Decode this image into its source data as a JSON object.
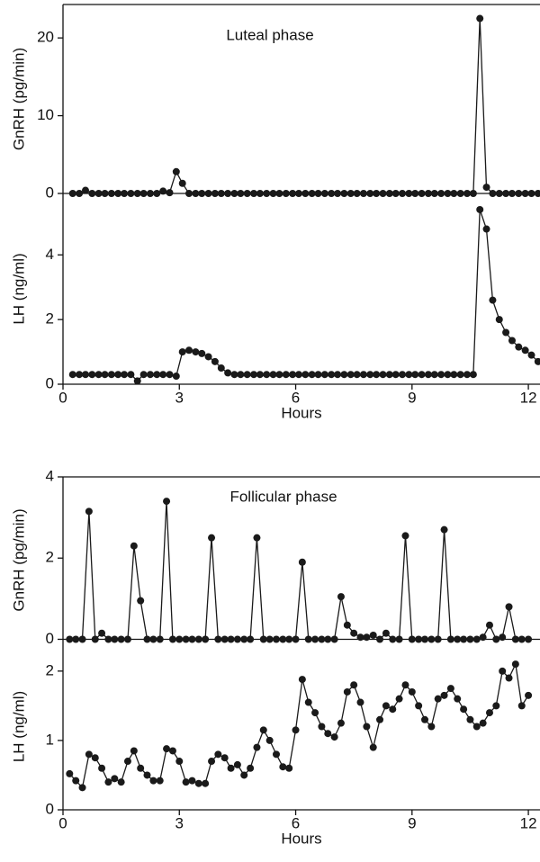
{
  "chart_data": [
    {
      "type": "line",
      "ylabel": "GnRH (pg/min)",
      "annotation": "Luteal phase",
      "color": "#1a1a1a",
      "xlim": [
        0,
        12.3
      ],
      "ylim": [
        0,
        24.3
      ],
      "yticks": [
        0,
        10,
        20
      ],
      "x": [
        0.25,
        0.42,
        0.58,
        0.75,
        0.92,
        1.08,
        1.25,
        1.42,
        1.58,
        1.75,
        1.92,
        2.08,
        2.25,
        2.42,
        2.58,
        2.75,
        2.92,
        3.08,
        3.25,
        3.42,
        3.58,
        3.75,
        3.92,
        4.08,
        4.25,
        4.42,
        4.58,
        4.75,
        4.92,
        5.08,
        5.25,
        5.42,
        5.58,
        5.75,
        5.92,
        6.08,
        6.25,
        6.42,
        6.58,
        6.75,
        6.92,
        7.08,
        7.25,
        7.42,
        7.58,
        7.75,
        7.92,
        8.08,
        8.25,
        8.42,
        8.58,
        8.75,
        8.92,
        9.08,
        9.25,
        9.42,
        9.58,
        9.75,
        9.92,
        10.08,
        10.25,
        10.42,
        10.58,
        10.75,
        10.92,
        11.08,
        11.25,
        11.42,
        11.58,
        11.75,
        11.92,
        12.08,
        12.25
      ],
      "values": [
        0,
        0,
        0.4,
        0,
        0,
        0,
        0,
        0,
        0,
        0,
        0,
        0,
        0,
        0,
        0.3,
        0.1,
        2.8,
        1.3,
        0,
        0,
        0,
        0,
        0,
        0,
        0,
        0,
        0,
        0,
        0,
        0,
        0,
        0,
        0,
        0,
        0,
        0,
        0,
        0,
        0,
        0,
        0,
        0,
        0,
        0,
        0,
        0,
        0,
        0,
        0,
        0,
        0,
        0,
        0,
        0,
        0,
        0,
        0,
        0,
        0,
        0,
        0,
        0,
        0,
        22.5,
        0.8,
        0,
        0,
        0,
        0,
        0,
        0,
        0,
        0
      ]
    },
    {
      "type": "line",
      "ylabel": "LH (ng/ml)",
      "xlabel": "Hours",
      "color": "#1a1a1a",
      "xlim": [
        0,
        12.3
      ],
      "ylim": [
        0,
        5.9
      ],
      "yticks": [
        0,
        2,
        4
      ],
      "xticks": [
        0,
        3,
        6,
        9,
        12
      ],
      "x": [
        0.25,
        0.42,
        0.58,
        0.75,
        0.92,
        1.08,
        1.25,
        1.42,
        1.58,
        1.75,
        1.92,
        2.08,
        2.25,
        2.42,
        2.58,
        2.75,
        2.92,
        3.08,
        3.25,
        3.42,
        3.58,
        3.75,
        3.92,
        4.08,
        4.25,
        4.42,
        4.58,
        4.75,
        4.92,
        5.08,
        5.25,
        5.42,
        5.58,
        5.75,
        5.92,
        6.08,
        6.25,
        6.42,
        6.58,
        6.75,
        6.92,
        7.08,
        7.25,
        7.42,
        7.58,
        7.75,
        7.92,
        8.08,
        8.25,
        8.42,
        8.58,
        8.75,
        8.92,
        9.08,
        9.25,
        9.42,
        9.58,
        9.75,
        9.92,
        10.08,
        10.25,
        10.42,
        10.58,
        10.75,
        10.92,
        11.08,
        11.25,
        11.42,
        11.58,
        11.75,
        11.92,
        12.08,
        12.25
      ],
      "values": [
        0.3,
        0.3,
        0.3,
        0.3,
        0.3,
        0.3,
        0.3,
        0.3,
        0.3,
        0.3,
        0.1,
        0.3,
        0.3,
        0.3,
        0.3,
        0.3,
        0.25,
        1.0,
        1.05,
        1.0,
        0.95,
        0.85,
        0.7,
        0.5,
        0.35,
        0.3,
        0.3,
        0.3,
        0.3,
        0.3,
        0.3,
        0.3,
        0.3,
        0.3,
        0.3,
        0.3,
        0.3,
        0.3,
        0.3,
        0.3,
        0.3,
        0.3,
        0.3,
        0.3,
        0.3,
        0.3,
        0.3,
        0.3,
        0.3,
        0.3,
        0.3,
        0.3,
        0.3,
        0.3,
        0.3,
        0.3,
        0.3,
        0.3,
        0.3,
        0.3,
        0.3,
        0.3,
        0.3,
        5.4,
        4.8,
        2.6,
        2.0,
        1.6,
        1.35,
        1.15,
        1.05,
        0.9,
        0.7
      ]
    },
    {
      "type": "line",
      "ylabel": "GnRH (pg/min)",
      "annotation": "Follicular phase",
      "color": "#1a1a1a",
      "xlim": [
        0,
        12.3
      ],
      "ylim": [
        -0.1,
        4
      ],
      "yticks": [
        0,
        2,
        4
      ],
      "x": [
        0.17,
        0.33,
        0.5,
        0.67,
        0.83,
        1,
        1.17,
        1.33,
        1.5,
        1.67,
        1.83,
        2,
        2.17,
        2.33,
        2.5,
        2.67,
        2.83,
        3,
        3.17,
        3.33,
        3.5,
        3.67,
        3.83,
        4,
        4.17,
        4.33,
        4.5,
        4.67,
        4.83,
        5,
        5.17,
        5.33,
        5.5,
        5.67,
        5.83,
        6,
        6.17,
        6.33,
        6.5,
        6.67,
        6.83,
        7,
        7.17,
        7.33,
        7.5,
        7.67,
        7.83,
        8,
        8.17,
        8.33,
        8.5,
        8.67,
        8.83,
        9,
        9.17,
        9.33,
        9.5,
        9.67,
        9.83,
        10,
        10.17,
        10.33,
        10.5,
        10.67,
        10.83,
        11,
        11.17,
        11.33,
        11.5,
        11.67,
        11.83,
        12
      ],
      "values": [
        0,
        0,
        0,
        3.15,
        0,
        0.15,
        0,
        0,
        0,
        0,
        2.3,
        0.95,
        0,
        0,
        0,
        3.4,
        0,
        0,
        0,
        0,
        0,
        0,
        2.5,
        0,
        0,
        0,
        0,
        0,
        0,
        2.5,
        0,
        0,
        0,
        0,
        0,
        0,
        1.9,
        0,
        0,
        0,
        0,
        0,
        1.05,
        0.35,
        0.15,
        0.05,
        0.05,
        0.1,
        0,
        0.15,
        0,
        0,
        2.55,
        0,
        0,
        0,
        0,
        0,
        2.7,
        0,
        0,
        0,
        0,
        0,
        0.05,
        0.35,
        0,
        0.05,
        0.8,
        0,
        0,
        0
      ]
    },
    {
      "type": "line",
      "ylabel": "LH (ng/ml)",
      "xlabel": "Hours",
      "color": "#1a1a1a",
      "xlim": [
        0,
        12.3
      ],
      "ylim": [
        0,
        2.4
      ],
      "yticks": [
        0,
        1,
        2
      ],
      "xticks": [
        0,
        3,
        6,
        9,
        12
      ],
      "x": [
        0.17,
        0.33,
        0.5,
        0.67,
        0.83,
        1,
        1.17,
        1.33,
        1.5,
        1.67,
        1.83,
        2,
        2.17,
        2.33,
        2.5,
        2.67,
        2.83,
        3,
        3.17,
        3.33,
        3.5,
        3.67,
        3.83,
        4,
        4.17,
        4.33,
        4.5,
        4.67,
        4.83,
        5,
        5.17,
        5.33,
        5.5,
        5.67,
        5.83,
        6,
        6.17,
        6.33,
        6.5,
        6.67,
        6.83,
        7,
        7.17,
        7.33,
        7.5,
        7.67,
        7.83,
        8,
        8.17,
        8.33,
        8.5,
        8.67,
        8.83,
        9,
        9.17,
        9.33,
        9.5,
        9.67,
        9.83,
        10,
        10.17,
        10.33,
        10.5,
        10.67,
        10.83,
        11,
        11.17,
        11.33,
        11.5,
        11.67,
        11.83,
        12
      ],
      "values": [
        0.52,
        0.42,
        0.32,
        0.8,
        0.75,
        0.6,
        0.4,
        0.45,
        0.4,
        0.7,
        0.85,
        0.6,
        0.5,
        0.42,
        0.42,
        0.88,
        0.85,
        0.7,
        0.4,
        0.42,
        0.38,
        0.38,
        0.7,
        0.8,
        0.75,
        0.6,
        0.65,
        0.5,
        0.6,
        0.9,
        1.15,
        1.0,
        0.8,
        0.62,
        0.6,
        1.15,
        1.88,
        1.55,
        1.4,
        1.2,
        1.1,
        1.05,
        1.25,
        1.7,
        1.8,
        1.55,
        1.2,
        0.9,
        1.3,
        1.5,
        1.45,
        1.6,
        1.8,
        1.7,
        1.5,
        1.3,
        1.2,
        1.6,
        1.65,
        1.75,
        1.6,
        1.45,
        1.3,
        1.2,
        1.25,
        1.4,
        1.5,
        2.0,
        1.9,
        2.1,
        1.5,
        1.65
      ]
    }
  ]
}
